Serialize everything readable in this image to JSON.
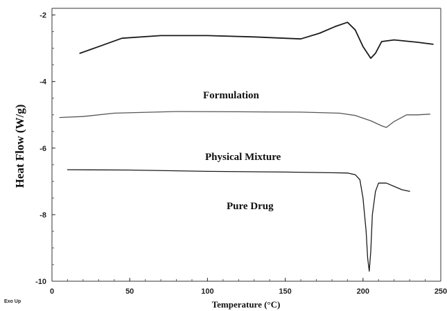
{
  "chart_data": {
    "type": "line",
    "xlabel": "Temperature (°C)",
    "ylabel": "Heat Flow (W/g)",
    "xlim": [
      0,
      250
    ],
    "ylim": [
      -10,
      -1.8
    ],
    "xticks": [
      "0",
      "50",
      "100",
      "150",
      "200",
      "250"
    ],
    "yticks": [
      "-2",
      "-4",
      "-6",
      "-8",
      "-10"
    ],
    "corner_note": "Exo Up",
    "grid": false,
    "series": [
      {
        "name": "Formulation",
        "color": "#1a1a1a",
        "x": [
          18,
          30,
          45,
          70,
          100,
          130,
          160,
          172,
          182,
          190,
          195,
          200,
          205,
          208,
          212,
          220,
          235,
          245
        ],
        "y": [
          -3.15,
          -2.95,
          -2.7,
          -2.62,
          -2.62,
          -2.66,
          -2.72,
          -2.55,
          -2.35,
          -2.22,
          -2.45,
          -2.95,
          -3.3,
          -3.15,
          -2.8,
          -2.75,
          -2.82,
          -2.88
        ]
      },
      {
        "name": "Physical Mixture",
        "color": "#555555",
        "x": [
          5,
          20,
          40,
          80,
          120,
          160,
          185,
          195,
          205,
          212,
          215,
          220,
          228,
          235,
          243
        ],
        "y": [
          -5.08,
          -5.05,
          -4.95,
          -4.9,
          -4.91,
          -4.92,
          -4.95,
          -5.02,
          -5.18,
          -5.33,
          -5.38,
          -5.2,
          -5.0,
          -5.0,
          -4.98
        ]
      },
      {
        "name": "Pure Drug",
        "color": "#1a1a1a",
        "x": [
          10,
          50,
          100,
          150,
          180,
          190,
          195,
          198,
          200,
          202,
          203,
          204,
          205,
          206,
          208,
          210,
          215,
          220,
          225,
          230
        ],
        "y": [
          -6.65,
          -6.66,
          -6.7,
          -6.72,
          -6.74,
          -6.75,
          -6.8,
          -6.95,
          -7.5,
          -8.5,
          -9.3,
          -9.7,
          -9.1,
          -8.0,
          -7.3,
          -7.05,
          -7.05,
          -7.15,
          -7.25,
          -7.3
        ]
      }
    ]
  }
}
